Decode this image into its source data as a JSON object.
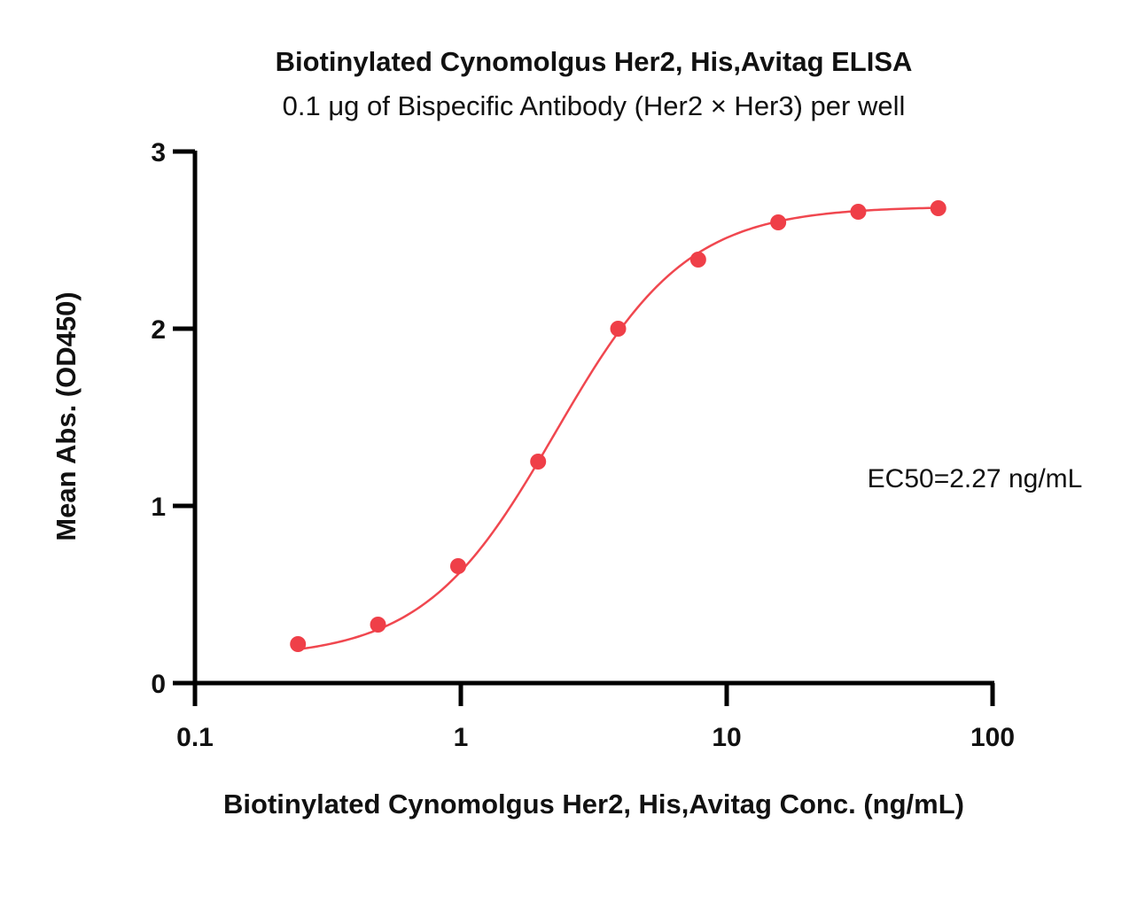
{
  "chart_data": {
    "type": "scatter",
    "title": "Biotinylated Cynomolgus Her2, His,Avitag ELISA",
    "subtitle": "0.1 μg of Bispecific Antibody (Her2 × Her3) per well",
    "xlabel": "Biotinylated Cynomolgus Her2, His,Avitag Conc. (ng/mL)",
    "ylabel": "Mean Abs. (OD450)",
    "x_scale": "log",
    "xlim": [
      0.1,
      100
    ],
    "ylim": [
      0,
      3
    ],
    "x_ticks": [
      "0.1",
      "1",
      "10",
      "100"
    ],
    "y_ticks": [
      "0",
      "1",
      "2",
      "3"
    ],
    "grid": false,
    "legend": "none",
    "series": [
      {
        "color": "#ef3f48",
        "x": [
          0.244,
          0.488,
          0.977,
          1.953,
          3.906,
          7.813,
          15.625,
          31.25,
          62.5
        ],
        "y": [
          0.22,
          0.33,
          0.66,
          1.25,
          2.0,
          2.39,
          2.6,
          2.66,
          2.68
        ]
      }
    ],
    "fit": {
      "model": "4PL",
      "bottom": 0.14,
      "top": 2.69,
      "ec50": 2.27,
      "hill": 1.75
    },
    "annotation": "EC50=2.27 ng/mL"
  }
}
